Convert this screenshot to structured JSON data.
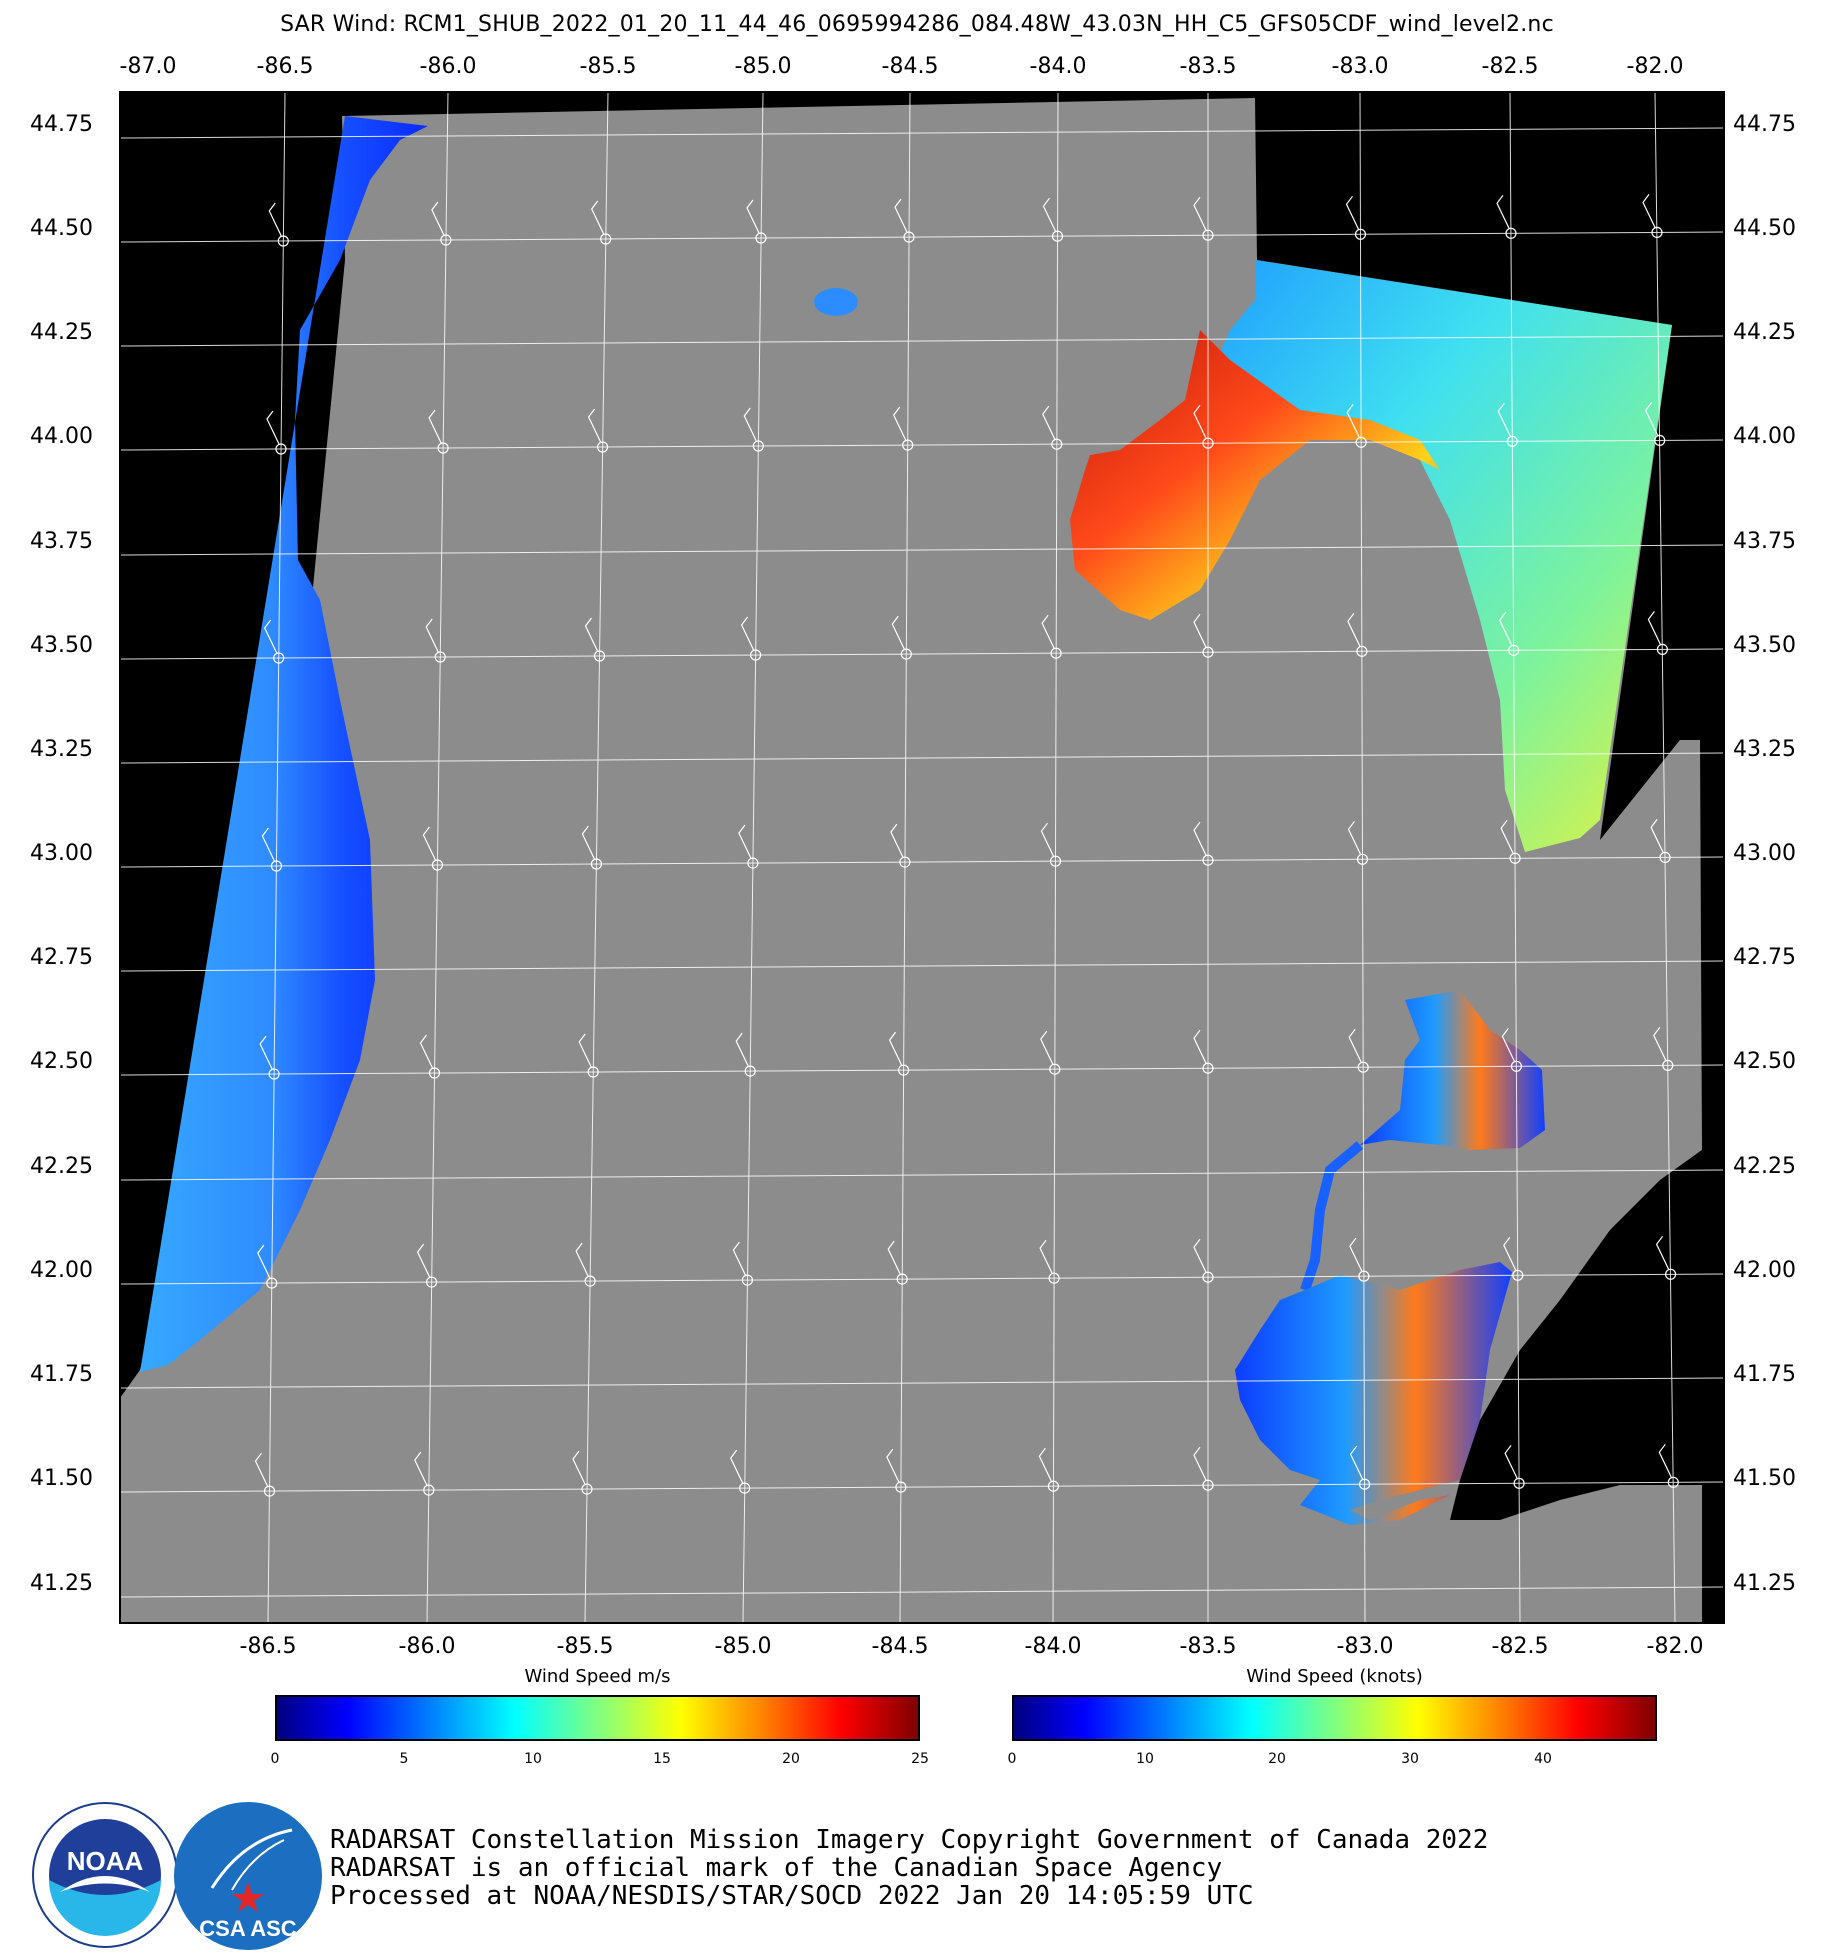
{
  "title": "SAR Wind: RCM1_SHUB_2022_01_20_11_44_46_0695994286_084.48W_43.03N_HH_C5_GFS05CDF_wind_level2.nc",
  "map": {
    "top_lon_labels": [
      "-87.0",
      "-86.5",
      "-86.0",
      "-85.5",
      "-85.0",
      "-84.5",
      "-84.0",
      "-83.5",
      "-83.0",
      "-82.5",
      "-82.0"
    ],
    "bottom_lon_labels": [
      "-86.5",
      "-86.0",
      "-85.5",
      "-85.0",
      "-84.5",
      "-84.0",
      "-83.5",
      "-83.0",
      "-82.5",
      "-82.0"
    ],
    "lat_labels": [
      "44.75",
      "44.50",
      "44.25",
      "44.00",
      "43.75",
      "43.50",
      "43.25",
      "43.00",
      "42.75",
      "42.50",
      "42.25",
      "42.00",
      "41.75",
      "41.50",
      "41.25"
    ],
    "colors": {
      "land": "#8c8c8c",
      "nodata": "#000000",
      "grid": "#ffffff"
    }
  },
  "colorbar_ms": {
    "title": "Wind Speed m/s",
    "ticks": [
      "0",
      "5",
      "10",
      "15",
      "20",
      "25"
    ],
    "range": [
      0,
      25
    ]
  },
  "colorbar_knots": {
    "title": "Wind Speed (knots)",
    "ticks": [
      "0",
      "10",
      "20",
      "30",
      "40"
    ],
    "range": [
      0,
      48.6
    ]
  },
  "logos": {
    "noaa": "NOAA",
    "noaa_ring": "NATIONAL OCEANIC AND ATMOSPHERIC ADMINISTRATION · U.S. DEPARTMENT OF COMMERCE",
    "csa": "CSA ASC"
  },
  "footer": {
    "line1": "RADARSAT Constellation Mission Imagery Copyright Government of Canada 2022",
    "line2": "RADARSAT is an official mark of the Canadian Space Agency",
    "line3": "Processed at NOAA/NESDIS/STAR/SOCD 2022 Jan 20 14:05:59 UTC"
  }
}
